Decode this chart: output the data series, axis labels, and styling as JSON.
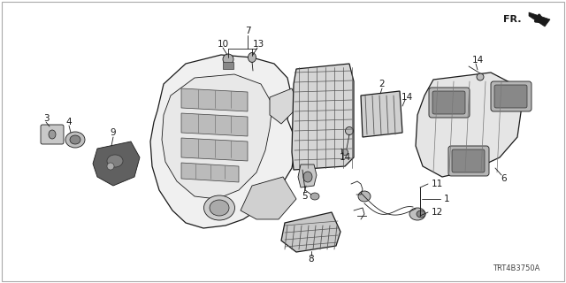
{
  "bg_color": "#ffffff",
  "line_color": "#1a1a1a",
  "label_color": "#1a1a1a",
  "border_color": "#aaaaaa",
  "diagram_code": "TRT4B3750A",
  "fr_text": "FR.",
  "fig_width": 6.4,
  "fig_height": 3.2,
  "dpi": 100,
  "label_fontsize": 7.5,
  "code_fontsize": 6.0
}
